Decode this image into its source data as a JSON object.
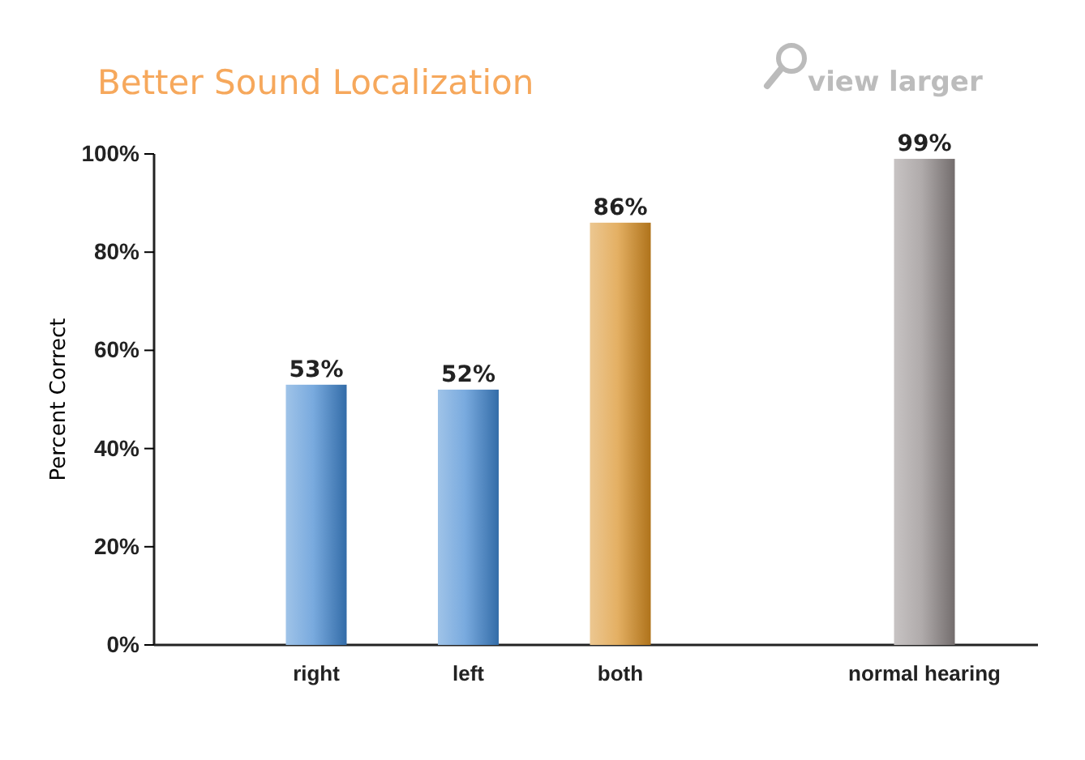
{
  "chart_data": {
    "type": "bar",
    "title": "Better Sound Localization",
    "ylabel": "Percent Correct",
    "annotations": [
      "view larger"
    ],
    "categories": [
      "right",
      "left",
      "both",
      null,
      "normal hearing"
    ],
    "values": [
      53,
      52,
      86,
      null,
      99
    ],
    "value_labels": [
      "53%",
      "52%",
      "86%",
      null,
      "99%"
    ],
    "colors": [
      "#3f86d0",
      "#3f86d0",
      "#d98e22",
      null,
      "#8e8787"
    ],
    "ylim": [
      0,
      100
    ],
    "yticks": [
      {
        "value": 0,
        "label": "0%"
      },
      {
        "value": 20,
        "label": "20%"
      },
      {
        "value": 40,
        "label": "40%"
      },
      {
        "value": 60,
        "label": "60%"
      },
      {
        "value": 80,
        "label": "80%"
      },
      {
        "value": 100,
        "label": "100%"
      }
    ]
  }
}
